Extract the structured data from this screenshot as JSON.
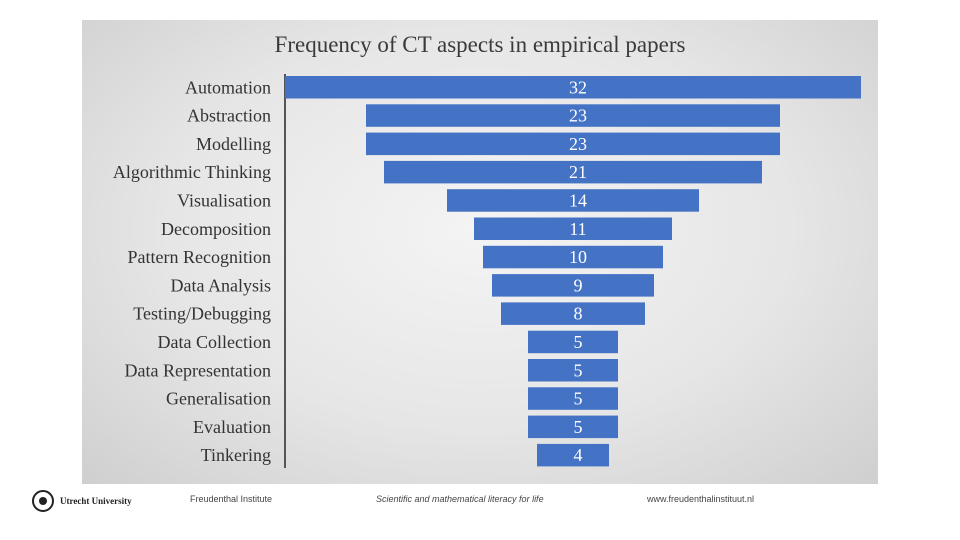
{
  "chart_data": {
    "type": "bar",
    "orientation": "horizontal",
    "title": "Frequency of CT aspects in empirical papers",
    "categories": [
      "Automation",
      "Abstraction",
      "Modelling",
      "Algorithmic Thinking",
      "Visualisation",
      "Decomposition",
      "Pattern Recognition",
      "Data Analysis",
      "Testing/Debugging",
      "Data Collection",
      "Data Representation",
      "Generalisation",
      "Evaluation",
      "Tinkering"
    ],
    "values": [
      32,
      23,
      23,
      21,
      14,
      11,
      10,
      9,
      8,
      5,
      5,
      5,
      5,
      4
    ],
    "alignment": "centered funnel",
    "bar_color": "#4472c4",
    "xlim": [
      0,
      32
    ],
    "data_labels": true,
    "grid": false
  },
  "footer": {
    "logo_text": "Utrecht University",
    "institute": "Freudenthal Institute",
    "tagline": "Scientific and mathematical literacy for life",
    "url": "www.freudenthalinstituut.nl"
  }
}
